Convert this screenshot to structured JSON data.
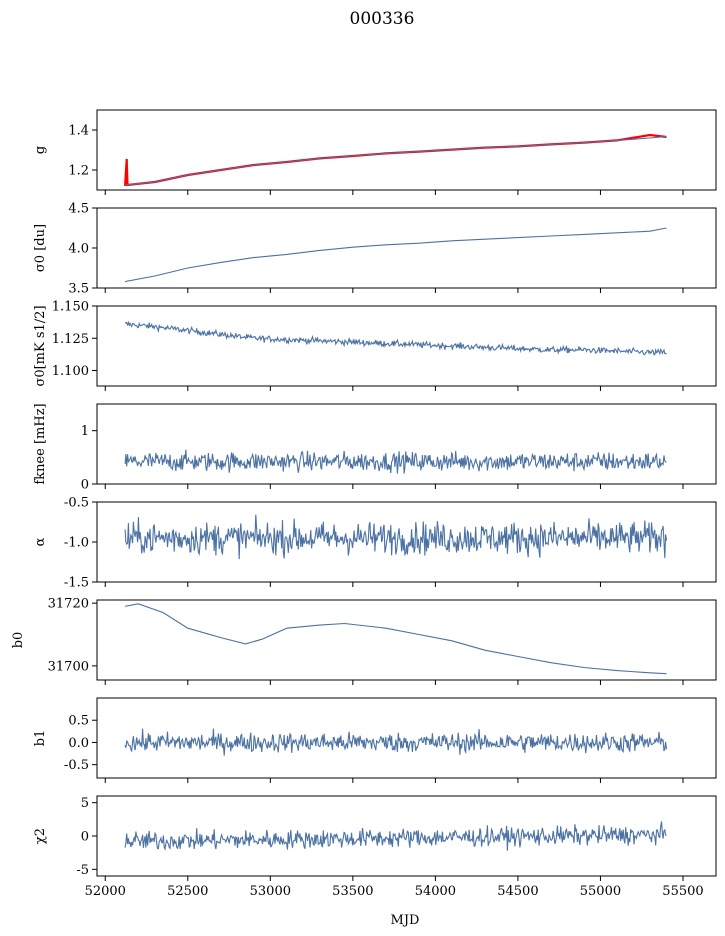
{
  "figure": {
    "title": "000336",
    "xlabel": "MJD",
    "x_range": [
      51950,
      55700
    ],
    "x_ticks": [
      52000,
      52500,
      53000,
      53500,
      54000,
      54500,
      55000,
      55500
    ],
    "x_start": 52120,
    "x_end": 55400
  },
  "panels": [
    {
      "key": "g",
      "ylabel": "g",
      "ylim": [
        1.1,
        1.5
      ],
      "yticks": [
        "1.2",
        "1.4"
      ],
      "ytick_values": [
        1.2,
        1.4
      ]
    },
    {
      "key": "sigma0_du",
      "ylabel": "σ0 [du]",
      "ylim": [
        3.5,
        4.5
      ],
      "yticks": [
        "3.5",
        "4.0",
        "4.5"
      ],
      "ytick_values": [
        3.5,
        4.0,
        4.5
      ]
    },
    {
      "key": "sigma0_mK",
      "ylabel": "σ0[mK s1/2]",
      "ylim": [
        1.088,
        1.15
      ],
      "yticks": [
        "1.100",
        "1.125",
        "1.150"
      ],
      "ytick_values": [
        1.1,
        1.125,
        1.15
      ]
    },
    {
      "key": "fknee",
      "ylabel": "fknee [mHz]",
      "ylim": [
        0,
        1.5
      ],
      "yticks": [
        "0",
        "1"
      ],
      "ytick_values": [
        0,
        1
      ]
    },
    {
      "key": "alpha",
      "ylabel": "α",
      "ylim": [
        -1.5,
        -0.5
      ],
      "yticks": [
        "-1.5",
        "-1.0",
        "-0.5"
      ],
      "ytick_values": [
        -1.5,
        -1.0,
        -0.5
      ]
    },
    {
      "key": "b0",
      "ylabel": "b0",
      "ylim": [
        31695.5,
        31721
      ],
      "yticks": [
        "31700",
        "31720"
      ],
      "ytick_values": [
        31700,
        31720
      ]
    },
    {
      "key": "b1",
      "ylabel": "b1",
      "ylim": [
        -0.8,
        1.0
      ],
      "yticks": [
        "-0.5",
        "0.0",
        "0.5"
      ],
      "ytick_values": [
        -0.5,
        0.0,
        0.5
      ]
    },
    {
      "key": "chi2",
      "ylabel": "χ2",
      "ylim": [
        -6,
        6
      ],
      "yticks": [
        "-5",
        "0",
        "5"
      ],
      "ytick_values": [
        -5,
        0,
        5
      ]
    }
  ],
  "chart_data": {
    "type": "line",
    "title": "000336",
    "xlabel": "MJD",
    "xlim": [
      51950,
      55700
    ],
    "colors": {
      "series": "#4c72a4",
      "fit": "#ff0000"
    },
    "series": [
      {
        "panel": "g",
        "x": [
          52120,
          52300,
          52500,
          52700,
          52900,
          53100,
          53300,
          53500,
          53700,
          53900,
          54100,
          54300,
          54500,
          54700,
          54900,
          55100,
          55300,
          55400
        ],
        "y": [
          1.125,
          1.14,
          1.175,
          1.2,
          1.225,
          1.24,
          1.258,
          1.27,
          1.283,
          1.292,
          1.302,
          1.312,
          1.318,
          1.328,
          1.337,
          1.348,
          1.36,
          1.368
        ]
      },
      {
        "panel": "g_fit",
        "x": [
          52120,
          52130,
          52135,
          52300,
          52500,
          52700,
          52900,
          53100,
          53300,
          53500,
          53700,
          53900,
          54100,
          54300,
          54500,
          54700,
          54900,
          55100,
          55300,
          55400
        ],
        "y": [
          1.12,
          1.255,
          1.125,
          1.14,
          1.175,
          1.2,
          1.225,
          1.24,
          1.258,
          1.27,
          1.283,
          1.292,
          1.302,
          1.312,
          1.318,
          1.328,
          1.337,
          1.348,
          1.375,
          1.365
        ]
      },
      {
        "panel": "sigma0_du",
        "x": [
          52120,
          52300,
          52500,
          52700,
          52900,
          53100,
          53300,
          53500,
          53700,
          53900,
          54100,
          54300,
          54500,
          54700,
          54900,
          55100,
          55300,
          55400
        ],
        "y": [
          3.58,
          3.65,
          3.75,
          3.82,
          3.88,
          3.92,
          3.97,
          4.01,
          4.04,
          4.06,
          4.09,
          4.11,
          4.13,
          4.15,
          4.17,
          4.19,
          4.21,
          4.25
        ]
      },
      {
        "panel": "sigma0_mK",
        "x": [
          52120,
          52300,
          52500,
          52700,
          52900,
          53100,
          53300,
          53500,
          53700,
          53900,
          54100,
          54300,
          54500,
          54700,
          54900,
          55100,
          55300,
          55400
        ],
        "y": [
          1.136,
          1.134,
          1.131,
          1.128,
          1.125,
          1.124,
          1.123,
          1.122,
          1.121,
          1.12,
          1.119,
          1.118,
          1.117,
          1.116,
          1.116,
          1.115,
          1.114,
          1.114
        ],
        "noise": 0.0012
      },
      {
        "panel": "fknee",
        "x": [
          52120,
          55400
        ],
        "y": [
          0.42,
          0.42
        ],
        "noise": 0.09
      },
      {
        "panel": "alpha",
        "x": [
          52120,
          55400
        ],
        "y": [
          -0.95,
          -0.95
        ],
        "noise": 0.1
      },
      {
        "panel": "b0",
        "x": [
          52120,
          52200,
          52350,
          52500,
          52700,
          52850,
          52950,
          53100,
          53300,
          53450,
          53700,
          53900,
          54100,
          54300,
          54500,
          54700,
          54900,
          55100,
          55300,
          55400
        ],
        "y": [
          31719.0,
          31719.8,
          31717.0,
          31712.0,
          31709.0,
          31707.0,
          31708.5,
          31712.0,
          31713.0,
          31713.5,
          31712.0,
          31710.0,
          31708.0,
          31705.0,
          31703.0,
          31701.0,
          31699.5,
          31698.5,
          31697.8,
          31697.5
        ]
      },
      {
        "panel": "b1",
        "x": [
          52120,
          55400
        ],
        "y": [
          0.0,
          0.0
        ],
        "noise": 0.11
      },
      {
        "panel": "chi2",
        "x": [
          52120,
          55400
        ],
        "y": [
          -0.8,
          0.2
        ],
        "noise": 0.7
      }
    ]
  }
}
